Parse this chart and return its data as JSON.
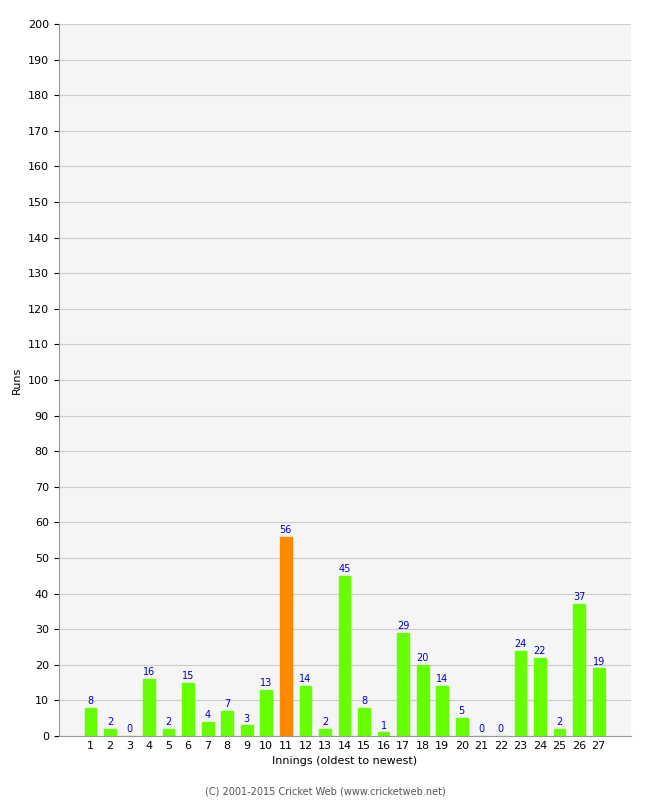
{
  "title": "",
  "xlabel": "Innings (oldest to newest)",
  "ylabel": "Runs",
  "ylim": [
    0,
    200
  ],
  "yticks": [
    0,
    10,
    20,
    30,
    40,
    50,
    60,
    70,
    80,
    90,
    100,
    110,
    120,
    130,
    140,
    150,
    160,
    170,
    180,
    190,
    200
  ],
  "innings": [
    1,
    2,
    3,
    4,
    5,
    6,
    7,
    8,
    9,
    10,
    11,
    12,
    13,
    14,
    15,
    16,
    17,
    18,
    19,
    20,
    21,
    22,
    23,
    24,
    25,
    26,
    27
  ],
  "values": [
    8,
    2,
    0,
    16,
    2,
    15,
    4,
    7,
    3,
    13,
    56,
    14,
    2,
    45,
    8,
    1,
    29,
    20,
    14,
    5,
    0,
    0,
    24,
    22,
    2,
    37,
    19
  ],
  "colors": [
    "#66ff00",
    "#66ff00",
    "#66ff00",
    "#66ff00",
    "#66ff00",
    "#66ff00",
    "#66ff00",
    "#66ff00",
    "#66ff00",
    "#66ff00",
    "#ff8800",
    "#66ff00",
    "#66ff00",
    "#66ff00",
    "#66ff00",
    "#66ff00",
    "#66ff00",
    "#66ff00",
    "#66ff00",
    "#66ff00",
    "#66ff00",
    "#66ff00",
    "#66ff00",
    "#66ff00",
    "#66ff00",
    "#66ff00",
    "#66ff00"
  ],
  "label_color": "#0000cc",
  "bg_color": "#ffffff",
  "plot_bg_color": "#f5f5f5",
  "grid_color": "#cccccc",
  "footer": "(C) 2001-2015 Cricket Web (www.cricketweb.net)",
  "tick_label_size": 8,
  "axis_label_size": 8,
  "bar_label_size": 7
}
